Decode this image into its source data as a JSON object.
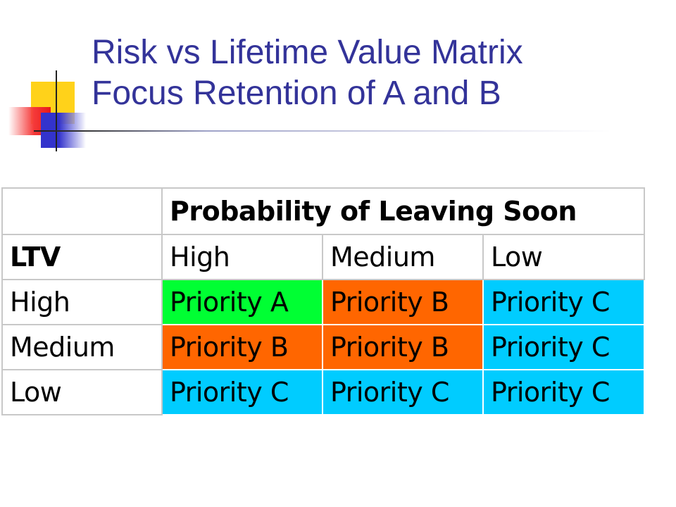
{
  "title": {
    "line1": "Risk vs Lifetime Value Matrix",
    "line2": "Focus Retention of A and B"
  },
  "colors": {
    "title": "#333399",
    "priority_a": "#00ff33",
    "priority_b": "#ff6600",
    "priority_c": "#00ccff"
  },
  "matrix": {
    "header": "Probability of Leaving Soon",
    "row_header": "LTV",
    "columns": [
      "High",
      "Medium",
      "Low"
    ],
    "rows": [
      {
        "label": "High",
        "cells": [
          "Priority A",
          "Priority B",
          "Priority C"
        ]
      },
      {
        "label": "Medium",
        "cells": [
          "Priority B",
          "Priority B",
          "Priority C"
        ]
      },
      {
        "label": "Low",
        "cells": [
          "Priority C",
          "Priority C",
          "Priority C"
        ]
      }
    ]
  }
}
